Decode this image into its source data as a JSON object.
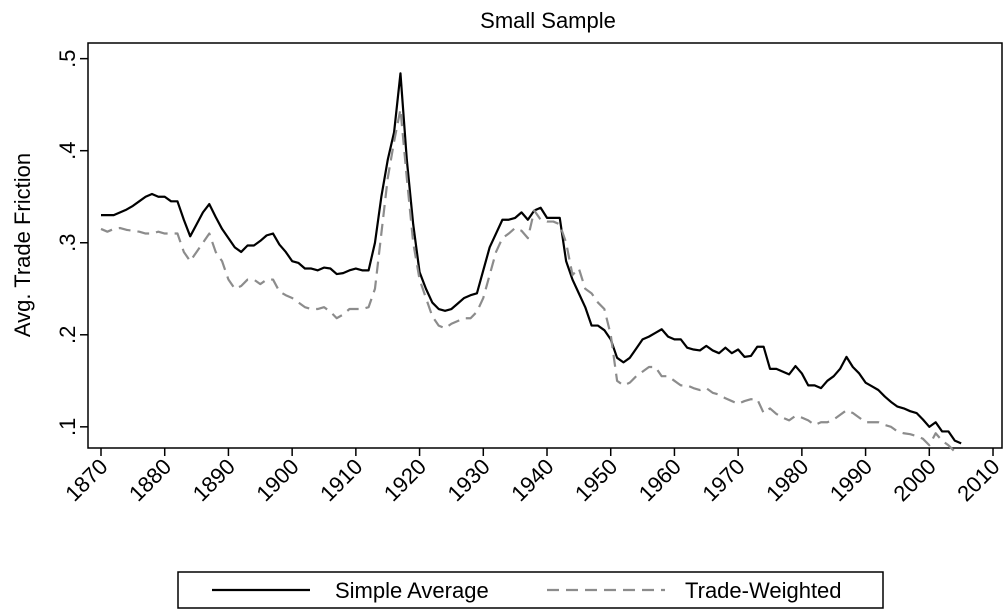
{
  "chart_data": {
    "type": "line",
    "title": "Small Sample",
    "y_label": "Avg. Trade Friction",
    "x": [
      1870,
      1871,
      1872,
      1873,
      1874,
      1875,
      1876,
      1877,
      1878,
      1879,
      1880,
      1881,
      1882,
      1883,
      1884,
      1885,
      1886,
      1887,
      1888,
      1889,
      1890,
      1891,
      1892,
      1893,
      1894,
      1895,
      1896,
      1897,
      1898,
      1899,
      1900,
      1901,
      1902,
      1903,
      1904,
      1905,
      1906,
      1907,
      1908,
      1909,
      1910,
      1911,
      1912,
      1913,
      1914,
      1915,
      1916,
      1917,
      1918,
      1919,
      1920,
      1921,
      1922,
      1923,
      1924,
      1925,
      1926,
      1927,
      1928,
      1929,
      1930,
      1931,
      1932,
      1933,
      1934,
      1935,
      1936,
      1937,
      1938,
      1939,
      1940,
      1941,
      1942,
      1943,
      1944,
      1945,
      1946,
      1947,
      1948,
      1949,
      1950,
      1951,
      1952,
      1953,
      1954,
      1955,
      1956,
      1957,
      1958,
      1959,
      1960,
      1961,
      1962,
      1963,
      1964,
      1965,
      1966,
      1967,
      1968,
      1969,
      1970,
      1971,
      1972,
      1973,
      1974,
      1975,
      1976,
      1977,
      1978,
      1979,
      1980,
      1981,
      1982,
      1983,
      1984,
      1985,
      1986,
      1987,
      1988,
      1989,
      1990,
      1991,
      1992,
      1993,
      1994,
      1995,
      1996,
      1997,
      1998,
      1999,
      2000,
      2001,
      2002,
      2003,
      2004,
      2005
    ],
    "series": [
      {
        "name": "Simple Average",
        "color": "#000000",
        "dash": "solid",
        "values": [
          0.33,
          0.33,
          0.33,
          0.333,
          0.336,
          0.34,
          0.345,
          0.35,
          0.353,
          0.35,
          0.35,
          0.345,
          0.345,
          0.325,
          0.307,
          0.32,
          0.333,
          0.342,
          0.328,
          0.315,
          0.305,
          0.295,
          0.29,
          0.297,
          0.297,
          0.302,
          0.308,
          0.31,
          0.298,
          0.29,
          0.28,
          0.278,
          0.272,
          0.272,
          0.27,
          0.273,
          0.272,
          0.266,
          0.267,
          0.27,
          0.272,
          0.27,
          0.27,
          0.3,
          0.35,
          0.39,
          0.42,
          0.484,
          0.39,
          0.32,
          0.268,
          0.25,
          0.235,
          0.228,
          0.226,
          0.228,
          0.234,
          0.24,
          0.243,
          0.245,
          0.27,
          0.295,
          0.31,
          0.325,
          0.325,
          0.327,
          0.333,
          0.325,
          0.335,
          0.338,
          0.327,
          0.327,
          0.327,
          0.28,
          0.26,
          0.245,
          0.23,
          0.21,
          0.21,
          0.205,
          0.195,
          0.175,
          0.17,
          0.175,
          0.185,
          0.195,
          0.198,
          0.202,
          0.206,
          0.198,
          0.195,
          0.195,
          0.186,
          0.184,
          0.183,
          0.188,
          0.183,
          0.18,
          0.186,
          0.18,
          0.184,
          0.176,
          0.177,
          0.187,
          0.187,
          0.163,
          0.163,
          0.16,
          0.157,
          0.166,
          0.158,
          0.145,
          0.145,
          0.142,
          0.15,
          0.155,
          0.163,
          0.176,
          0.165,
          0.158,
          0.148,
          0.144,
          0.14,
          0.133,
          0.127,
          0.122,
          0.12,
          0.117,
          0.115,
          0.108,
          0.1,
          0.105,
          0.095,
          0.095,
          0.085,
          0.082
        ]
      },
      {
        "name": "Trade-Weighted",
        "color": "#8c8c8c",
        "dash": "dashed",
        "values": [
          0.315,
          0.312,
          0.315,
          0.316,
          0.314,
          0.313,
          0.312,
          0.31,
          0.31,
          0.312,
          0.31,
          0.31,
          0.31,
          0.29,
          0.28,
          0.29,
          0.3,
          0.31,
          0.29,
          0.28,
          0.26,
          0.25,
          0.253,
          0.26,
          0.26,
          0.255,
          0.26,
          0.26,
          0.247,
          0.243,
          0.24,
          0.235,
          0.23,
          0.228,
          0.228,
          0.23,
          0.225,
          0.218,
          0.222,
          0.228,
          0.228,
          0.228,
          0.23,
          0.25,
          0.31,
          0.37,
          0.41,
          0.445,
          0.37,
          0.3,
          0.26,
          0.24,
          0.22,
          0.21,
          0.207,
          0.212,
          0.215,
          0.218,
          0.218,
          0.225,
          0.24,
          0.265,
          0.29,
          0.305,
          0.31,
          0.316,
          0.313,
          0.305,
          0.335,
          0.325,
          0.323,
          0.323,
          0.32,
          0.3,
          0.265,
          0.272,
          0.25,
          0.245,
          0.235,
          0.228,
          0.2,
          0.15,
          0.145,
          0.148,
          0.155,
          0.16,
          0.165,
          0.165,
          0.155,
          0.155,
          0.15,
          0.145,
          0.145,
          0.142,
          0.14,
          0.142,
          0.137,
          0.135,
          0.131,
          0.128,
          0.125,
          0.128,
          0.13,
          0.13,
          0.115,
          0.12,
          0.114,
          0.11,
          0.107,
          0.112,
          0.11,
          0.107,
          0.102,
          0.105,
          0.105,
          0.108,
          0.113,
          0.118,
          0.115,
          0.11,
          0.105,
          0.105,
          0.105,
          0.102,
          0.1,
          0.095,
          0.093,
          0.092,
          0.09,
          0.087,
          0.08,
          0.093,
          0.085,
          0.08,
          0.073,
          null
        ]
      }
    ],
    "xlim": [
      1867.96,
      2011.41
    ],
    "xticks": [
      1870,
      1880,
      1890,
      1900,
      1910,
      1920,
      1930,
      1940,
      1950,
      1960,
      1970,
      1980,
      1990,
      2000,
      2010
    ],
    "ylim": [
      0.077,
      0.517
    ],
    "yticks": [
      {
        "value": 0.1,
        "label": ".1"
      },
      {
        "value": 0.2,
        "label": ".2"
      },
      {
        "value": 0.3,
        "label": ".3"
      },
      {
        "value": 0.4,
        "label": ".4"
      },
      {
        "value": 0.5,
        "label": ".5"
      }
    ],
    "grid": false,
    "legend": "bottom"
  }
}
